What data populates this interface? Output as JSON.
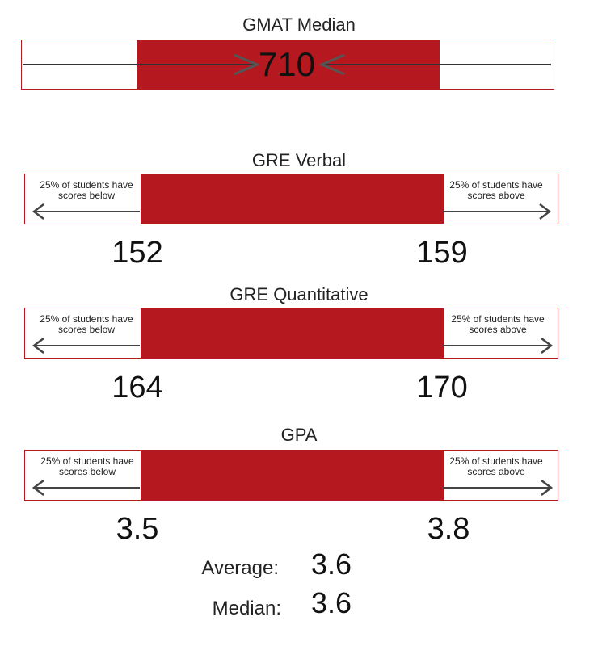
{
  "chart_data": [
    {
      "type": "range",
      "title": "GMAT Median",
      "median": 710
    },
    {
      "type": "range",
      "title": "GRE Verbal",
      "note_below": "25% of students have scores below",
      "note_above": "25% of students have scores above",
      "low": 152,
      "high": 159
    },
    {
      "type": "range",
      "title": "GRE Quantitative",
      "note_below": "25% of students have scores below",
      "note_above": "25% of students have scores above",
      "low": 164,
      "high": 170
    },
    {
      "type": "range",
      "title": "GPA",
      "note_below": "25% of students have scores below",
      "note_above": "25% of students have scores above",
      "low": "3.5",
      "high": "3.8"
    }
  ],
  "stats": {
    "average_label": "Average:",
    "average_value": "3.6",
    "median_label": "Median:",
    "median_value": "3.6"
  },
  "colors": {
    "accent": "#b5191f",
    "arrow": "#444444"
  }
}
